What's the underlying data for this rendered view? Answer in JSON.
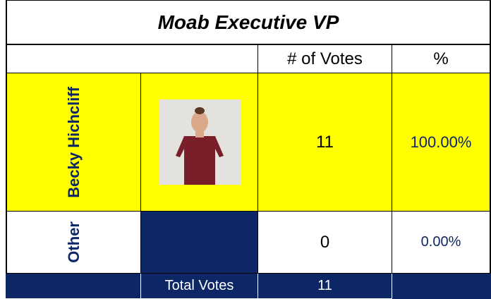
{
  "title": "Moab Executive VP",
  "table": {
    "header": [
      "# of Votes",
      "%"
    ],
    "rows": [
      [
        "Becky Hichcliff",
        11,
        "100.00%"
      ],
      [
        "Other",
        0,
        "0.00%"
      ]
    ],
    "total": {
      "label": "Total Votes",
      "votes": 11
    }
  }
}
